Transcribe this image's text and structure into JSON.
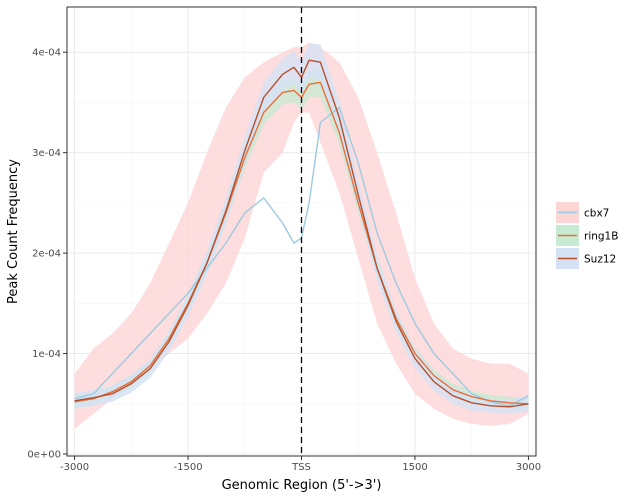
{
  "chart_data": {
    "type": "line",
    "xlabel": "Genomic Region (5'->3')",
    "ylabel": "Peak Count Frequency",
    "xlim": [
      -3100,
      3100
    ],
    "ylim": [
      -2e-06,
      0.000445
    ],
    "x_ticks": [
      {
        "value": -3000,
        "label": "-3000"
      },
      {
        "value": -1500,
        "label": "-1500"
      },
      {
        "value": 0,
        "label": "TSS"
      },
      {
        "value": 1500,
        "label": "1500"
      },
      {
        "value": 3000,
        "label": "3000"
      }
    ],
    "y_ticks": [
      {
        "value": 0,
        "label": "0e+00"
      },
      {
        "value": 0.0001,
        "label": "1e-04"
      },
      {
        "value": 0.0002,
        "label": "2e-04"
      },
      {
        "value": 0.0003,
        "label": "3e-04"
      },
      {
        "value": 0.0004,
        "label": "4e-04"
      }
    ],
    "vline": {
      "x": 0,
      "style": "dashed"
    },
    "grid": true,
    "legend_position": "right",
    "x": [
      -3000,
      -2750,
      -2500,
      -2250,
      -2000,
      -1750,
      -1500,
      -1250,
      -1000,
      -750,
      -500,
      -250,
      -100,
      0,
      100,
      250,
      500,
      750,
      1000,
      1250,
      1500,
      1750,
      2000,
      2250,
      2500,
      2750,
      3000
    ],
    "series": [
      {
        "name": "cbx7",
        "line_color": "#9ecae1",
        "ribbon_color": "#fcd5d5",
        "values": [
          5.5e-05,
          6e-05,
          8e-05,
          0.0001,
          0.00012,
          0.00014,
          0.00016,
          0.000185,
          0.00021,
          0.00024,
          0.000255,
          0.00023,
          0.00021,
          0.000215,
          0.00025,
          0.00033,
          0.000345,
          0.00029,
          0.00022,
          0.00017,
          0.00013,
          0.0001,
          8e-05,
          6e-05,
          5.2e-05,
          4.8e-05,
          5.8e-05
        ],
        "lower": [
          2.5e-05,
          4e-05,
          5.5e-05,
          7e-05,
          8.5e-05,
          0.0001,
          0.000115,
          0.00014,
          0.00017,
          0.000215,
          0.00028,
          0.0003,
          0.00033,
          0.00034,
          0.00034,
          0.00031,
          0.00026,
          0.000195,
          0.00013,
          9e-05,
          6e-05,
          4.5e-05,
          3.5e-05,
          3e-05,
          2.8e-05,
          3e-05,
          4e-05
        ],
        "upper": [
          8e-05,
          0.000105,
          0.00012,
          0.00014,
          0.00017,
          0.00021,
          0.00025,
          0.0003,
          0.000345,
          0.000375,
          0.00039,
          0.0004,
          0.000405,
          0.000405,
          0.00041,
          0.000405,
          0.00039,
          0.000355,
          0.0003,
          0.00024,
          0.000175,
          0.00013,
          0.000105,
          9.5e-05,
          9e-05,
          9e-05,
          8e-05
        ]
      },
      {
        "name": "ring1B",
        "line_color": "#e6703a",
        "ribbon_color": "#c8ead2",
        "values": [
          5.2e-05,
          5.5e-05,
          6.2e-05,
          7.2e-05,
          8.8e-05,
          0.000115,
          0.00015,
          0.00019,
          0.00024,
          0.000295,
          0.00034,
          0.00036,
          0.000362,
          0.000355,
          0.000368,
          0.00037,
          0.00032,
          0.00025,
          0.000185,
          0.000135,
          0.0001,
          7.8e-05,
          6.4e-05,
          5.7e-05,
          5.3e-05,
          5.1e-05,
          5e-05
        ],
        "lower": [
          4.6e-05,
          4.9e-05,
          5.6e-05,
          6.6e-05,
          8.2e-05,
          0.000108,
          0.000142,
          0.000181,
          0.00023,
          0.000284,
          0.000328,
          0.000348,
          0.00035,
          0.000343,
          0.000355,
          0.000356,
          0.000308,
          0.00024,
          0.000176,
          0.000128,
          9.4e-05,
          7.2e-05,
          5.8e-05,
          5.1e-05,
          4.7e-05,
          4.5e-05,
          4.4e-05
        ],
        "upper": [
          5.8e-05,
          6.1e-05,
          6.8e-05,
          7.8e-05,
          9.4e-05,
          0.000122,
          0.000158,
          0.000199,
          0.00025,
          0.000306,
          0.000352,
          0.000372,
          0.000374,
          0.000367,
          0.000381,
          0.000384,
          0.000332,
          0.00026,
          0.000194,
          0.000142,
          0.000106,
          8.4e-05,
          7e-05,
          6.3e-05,
          5.9e-05,
          5.7e-05,
          5.6e-05
        ]
      },
      {
        "name": "Suz12",
        "line_color": "#b5502e",
        "ribbon_color": "#d5e2f5",
        "values": [
          5.3e-05,
          5.6e-05,
          6e-05,
          7e-05,
          8.5e-05,
          0.000112,
          0.000148,
          0.00019,
          0.000242,
          0.000302,
          0.000355,
          0.000378,
          0.000385,
          0.000375,
          0.000392,
          0.00039,
          0.000335,
          0.000258,
          0.000185,
          0.000132,
          9.5e-05,
          7.2e-05,
          5.8e-05,
          5.1e-05,
          4.8e-05,
          4.7e-05,
          5e-05
        ],
        "lower": [
          4.5e-05,
          4.8e-05,
          5.2e-05,
          6.1e-05,
          7.6e-05,
          0.000102,
          0.000137,
          0.000178,
          0.000229,
          0.000288,
          0.00034,
          0.000362,
          0.000369,
          0.000358,
          0.000375,
          0.000372,
          0.000318,
          0.000243,
          0.000172,
          0.000121,
          8.5e-05,
          6.3e-05,
          5e-05,
          4.3e-05,
          4.1e-05,
          4e-05,
          4.2e-05
        ],
        "upper": [
          6.1e-05,
          6.4e-05,
          6.8e-05,
          7.9e-05,
          9.4e-05,
          0.000122,
          0.000159,
          0.000202,
          0.000255,
          0.000316,
          0.00037,
          0.000394,
          0.000401,
          0.000392,
          0.000409,
          0.000408,
          0.000352,
          0.000273,
          0.000198,
          0.000143,
          0.000105,
          8.1e-05,
          6.6e-05,
          5.9e-05,
          5.5e-05,
          5.4e-05,
          5.8e-05
        ]
      }
    ]
  }
}
